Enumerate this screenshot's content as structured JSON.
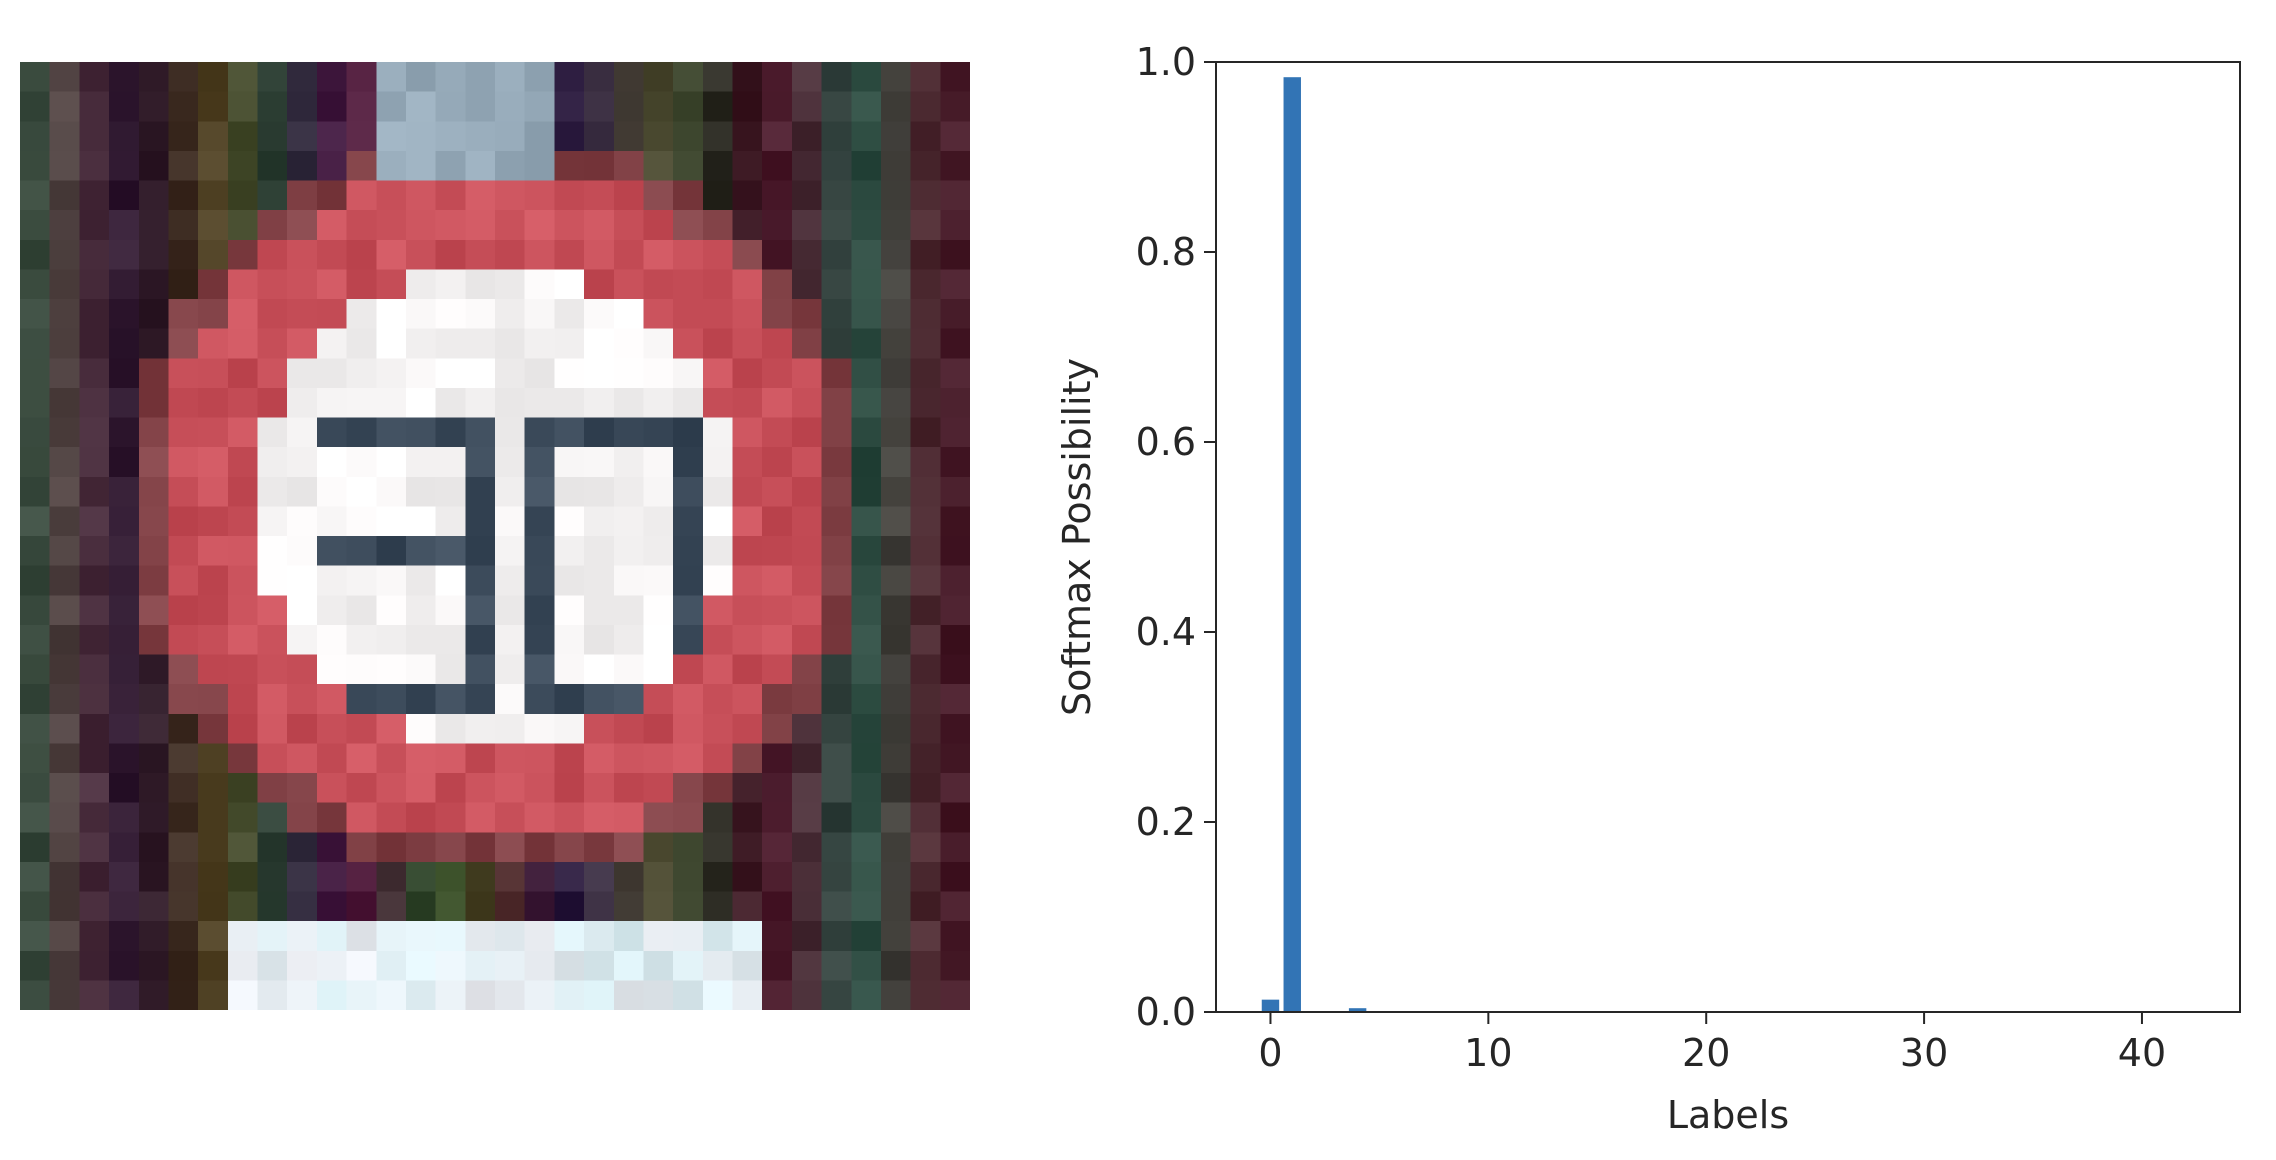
{
  "image_panel": {
    "description_name": "speed-limit-sign-image",
    "colors": {
      "ring": "#c8505a",
      "inner": "#f6f4f4",
      "digits": "#3b4a5a",
      "background": "#3a3232"
    }
  },
  "chart_data": {
    "type": "bar",
    "title": "",
    "xlabel": "Labels",
    "ylabel": "Softmax Possibility",
    "xlim": [
      -2.5,
      44.5
    ],
    "ylim": [
      0,
      1.0
    ],
    "x_ticks": [
      "0",
      "10",
      "20",
      "30",
      "40"
    ],
    "y_ticks": [
      "0.0",
      "0.2",
      "0.4",
      "0.6",
      "0.8",
      "1.0"
    ],
    "x": [
      0,
      1,
      4
    ],
    "values": [
      0.013,
      0.984,
      0.004
    ],
    "bar_width": 0.8,
    "grid": false,
    "colors": {
      "bar": "#3274b5",
      "axis": "#262626"
    }
  }
}
